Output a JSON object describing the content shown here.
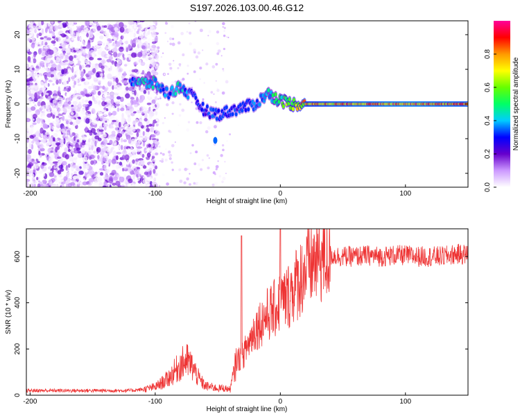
{
  "chart_data": [
    {
      "type": "heatmap",
      "title": "S197.2026.103.00.46.G12",
      "xlabel": "Height of straight line (km)",
      "ylabel": "Frequency (Hz)",
      "xlim": [
        -203,
        150
      ],
      "ylim": [
        -24,
        24
      ],
      "xticks": [
        -200,
        -100,
        0,
        100
      ],
      "yticks": [
        -20,
        -10,
        0,
        10,
        20
      ],
      "colorbar": {
        "label": "Normalized spectral amplitude",
        "range": [
          0.0,
          1.0
        ],
        "ticks": [
          0.0,
          0.2,
          0.4,
          0.6,
          0.8
        ],
        "tick_labels": [
          "0.0",
          "0.2",
          "0.4",
          "0.6",
          "0.8"
        ],
        "colors": [
          "#ffffff",
          "#cc99ff",
          "#6600cc",
          "#0000ff",
          "#00ccff",
          "#00ff66",
          "#66ff00",
          "#ffff00",
          "#ff9900",
          "#ff0000",
          "#ff0099"
        ]
      },
      "description_points": {
        "ridge": [
          {
            "x": -120,
            "y": 7,
            "v": 0.35
          },
          {
            "x": -110,
            "y": 6,
            "v": 0.45
          },
          {
            "x": -100,
            "y": 6,
            "v": 0.45
          },
          {
            "x": -90,
            "y": 3,
            "v": 0.35
          },
          {
            "x": -80,
            "y": 5,
            "v": 0.45
          },
          {
            "x": -70,
            "y": 2,
            "v": 0.3
          },
          {
            "x": -60,
            "y": -2,
            "v": 0.3
          },
          {
            "x": -50,
            "y": -3,
            "v": 0.35
          },
          {
            "x": -40,
            "y": -2,
            "v": 0.3
          },
          {
            "x": -30,
            "y": -1,
            "v": 0.35
          },
          {
            "x": -20,
            "y": 0,
            "v": 0.35
          },
          {
            "x": -10,
            "y": 3,
            "v": 0.45
          },
          {
            "x": 0,
            "y": 1,
            "v": 0.55
          },
          {
            "x": 10,
            "y": 0,
            "v": 0.65
          },
          {
            "x": 20,
            "y": 0,
            "v": 0.8
          },
          {
            "x": 50,
            "y": 0,
            "v": 0.85
          },
          {
            "x": 100,
            "y": 0,
            "v": 0.9
          },
          {
            "x": 150,
            "y": 0,
            "v": 0.85
          }
        ]
      }
    },
    {
      "type": "line",
      "title": "",
      "xlabel": "Height of straight line (km)",
      "ylabel": "SNR (10 * v/v)",
      "xlim": [
        -203,
        150
      ],
      "ylim": [
        0,
        720
      ],
      "xticks": [
        -200,
        -100,
        0,
        100
      ],
      "yticks": [
        0,
        200,
        400,
        600
      ],
      "series": [
        {
          "name": "SNR",
          "color": "#ee3333",
          "x": [
            -203,
            -180,
            -160,
            -140,
            -120,
            -110,
            -100,
            -90,
            -80,
            -75,
            -70,
            -65,
            -60,
            -50,
            -45,
            -40,
            -35,
            -30,
            -25,
            -20,
            -15,
            -10,
            -5,
            0,
            5,
            10,
            15,
            20,
            25,
            30,
            40,
            50,
            60,
            70,
            80,
            90,
            100,
            110,
            120,
            130,
            140,
            150
          ],
          "y": [
            20,
            20,
            20,
            20,
            20,
            25,
            35,
            70,
            130,
            150,
            120,
            70,
            40,
            30,
            30,
            25,
            150,
            170,
            230,
            290,
            320,
            350,
            370,
            400,
            420,
            460,
            500,
            540,
            570,
            590,
            605,
            600,
            600,
            605,
            600,
            605,
            605,
            600,
            600,
            600,
            610,
            610
          ]
        }
      ],
      "annotations": [
        {
          "x": -30,
          "y": 680,
          "text": "spike"
        },
        {
          "x": 0,
          "y": 720,
          "text": "spike"
        }
      ]
    }
  ]
}
